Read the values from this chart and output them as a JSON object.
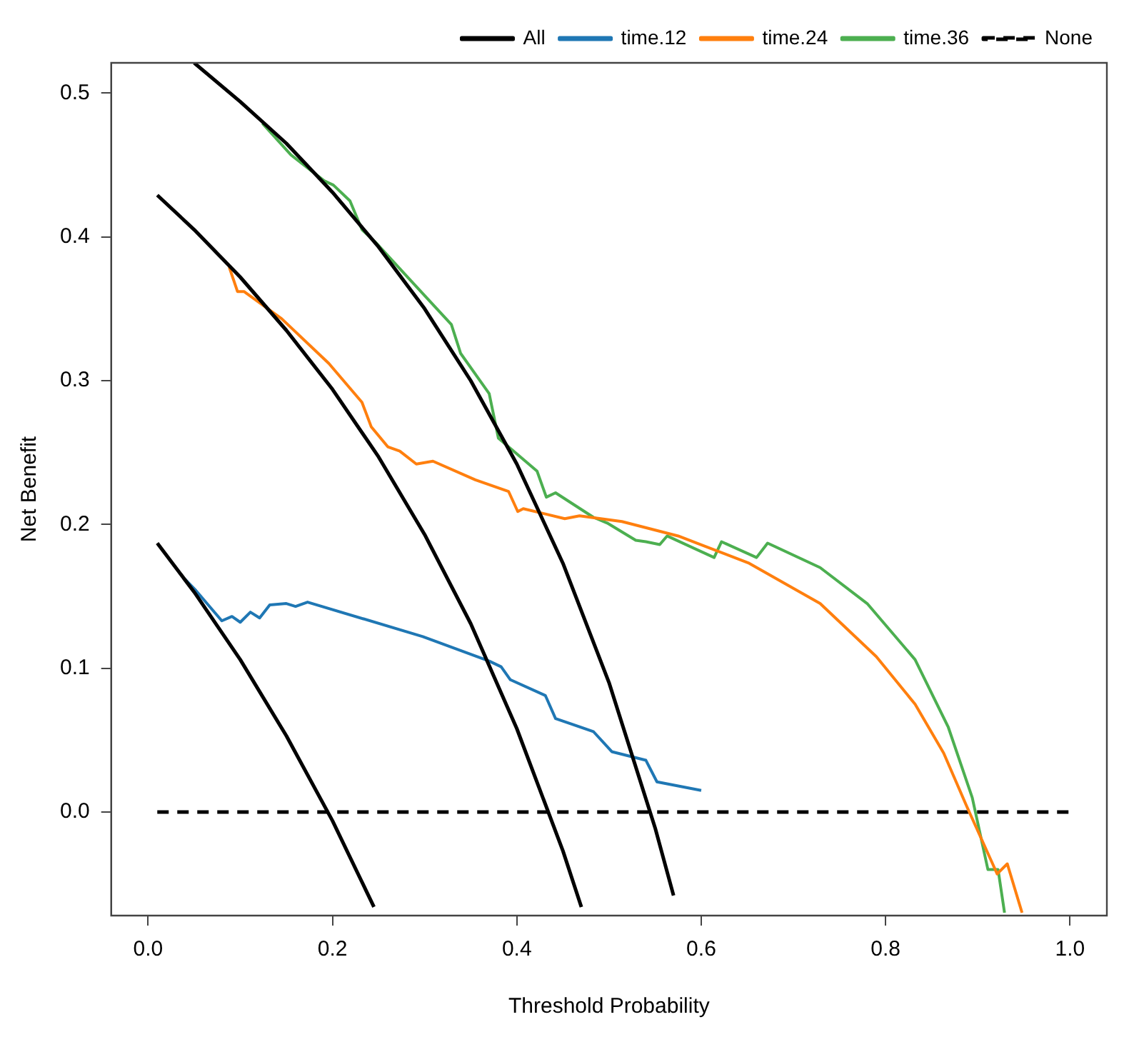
{
  "chart_data": {
    "type": "line",
    "xlabel": "Threshold Probability",
    "ylabel": "Net Benefit",
    "xlim": [
      -0.04,
      1.04
    ],
    "ylim": [
      -0.072,
      0.521
    ],
    "xticks": [
      {
        "value": 0,
        "label": "0.0"
      },
      {
        "value": 0.2,
        "label": "0.2"
      },
      {
        "value": 0.4,
        "label": "0.4"
      },
      {
        "value": 0.6,
        "label": "0.6"
      },
      {
        "value": 0.8,
        "label": "0.8"
      },
      {
        "value": 1,
        "label": "1.0"
      }
    ],
    "yticks": [
      {
        "value": 0,
        "label": "0.0"
      },
      0.1,
      0.2,
      0.3,
      0.4,
      0.5
    ],
    "grid": false,
    "legend": "top right",
    "marker": "none",
    "series": [
      {
        "name": "All",
        "color": "#000000",
        "line_style": "solid",
        "x": [
          0.01,
          0.05,
          0.1,
          0.15,
          0.2,
          0.245
        ],
        "values": [
          0.187,
          0.153,
          0.106,
          0.053,
          -0.006,
          -0.066
        ]
      },
      {
        "color": "#000000",
        "line_style": "solid",
        "x": [
          0.01,
          0.05,
          0.1,
          0.15,
          0.2,
          0.25,
          0.3,
          0.35,
          0.4,
          0.45,
          0.47
        ],
        "values": [
          0.429,
          0.405,
          0.372,
          0.335,
          0.294,
          0.247,
          0.193,
          0.131,
          0.058,
          -0.027,
          -0.066
        ]
      },
      {
        "color": "#000000",
        "line_style": "solid",
        "x": [
          0.05,
          0.1,
          0.15,
          0.2,
          0.25,
          0.3,
          0.35,
          0.4,
          0.45,
          0.5,
          0.55,
          0.57
        ],
        "values": [
          0.521,
          0.494,
          0.465,
          0.431,
          0.393,
          0.35,
          0.3,
          0.242,
          0.173,
          0.09,
          -0.011,
          -0.058
        ]
      },
      {
        "name": "time.12",
        "color": "#1f77b4",
        "line_style": "solid",
        "x": [
          0.04,
          0.052,
          0.08,
          0.091,
          0.1,
          0.111,
          0.121,
          0.132,
          0.15,
          0.16,
          0.173,
          0.298,
          0.37,
          0.383,
          0.393,
          0.431,
          0.442,
          0.483,
          0.503,
          0.54,
          0.552,
          0.6
        ],
        "values": [
          0.162,
          0.154,
          0.133,
          0.136,
          0.132,
          0.139,
          0.135,
          0.144,
          0.145,
          0.143,
          0.146,
          0.122,
          0.105,
          0.101,
          0.092,
          0.081,
          0.065,
          0.056,
          0.042,
          0.036,
          0.021,
          0.015
        ]
      },
      {
        "name": "time.24",
        "color": "#ff7f0e",
        "line_style": "solid",
        "x": [
          0.088,
          0.097,
          0.104,
          0.145,
          0.196,
          0.232,
          0.242,
          0.26,
          0.273,
          0.291,
          0.309,
          0.355,
          0.391,
          0.401,
          0.407,
          0.452,
          0.468,
          0.514,
          0.575,
          0.652,
          0.729,
          0.79,
          0.832,
          0.863,
          0.888,
          0.914,
          0.921,
          0.932,
          0.948
        ],
        "values": [
          0.379,
          0.362,
          0.362,
          0.343,
          0.312,
          0.285,
          0.268,
          0.254,
          0.251,
          0.242,
          0.244,
          0.231,
          0.223,
          0.209,
          0.211,
          0.204,
          0.206,
          0.202,
          0.192,
          0.173,
          0.145,
          0.108,
          0.075,
          0.041,
          0.004,
          -0.033,
          -0.043,
          -0.036,
          -0.07
        ]
      },
      {
        "name": "time.36",
        "color": "#4caf50",
        "line_style": "solid",
        "x": [
          0.124,
          0.155,
          0.191,
          0.201,
          0.219,
          0.232,
          0.247,
          0.283,
          0.329,
          0.339,
          0.37,
          0.38,
          0.422,
          0.432,
          0.442,
          0.483,
          0.498,
          0.529,
          0.54,
          0.555,
          0.563,
          0.614,
          0.622,
          0.66,
          0.672,
          0.729,
          0.78,
          0.832,
          0.868,
          0.894,
          0.911,
          0.922,
          0.929
        ],
        "values": [
          0.479,
          0.457,
          0.439,
          0.436,
          0.425,
          0.405,
          0.396,
          0.371,
          0.339,
          0.319,
          0.291,
          0.26,
          0.237,
          0.219,
          0.222,
          0.205,
          0.201,
          0.189,
          0.188,
          0.186,
          0.192,
          0.177,
          0.188,
          0.177,
          0.187,
          0.17,
          0.145,
          0.106,
          0.059,
          0.01,
          -0.04,
          -0.04,
          -0.07
        ]
      },
      {
        "name": "None",
        "color": "#000000",
        "line_style": "dashed",
        "x": [
          0.01,
          1.0
        ],
        "values": [
          0,
          0
        ]
      }
    ]
  }
}
